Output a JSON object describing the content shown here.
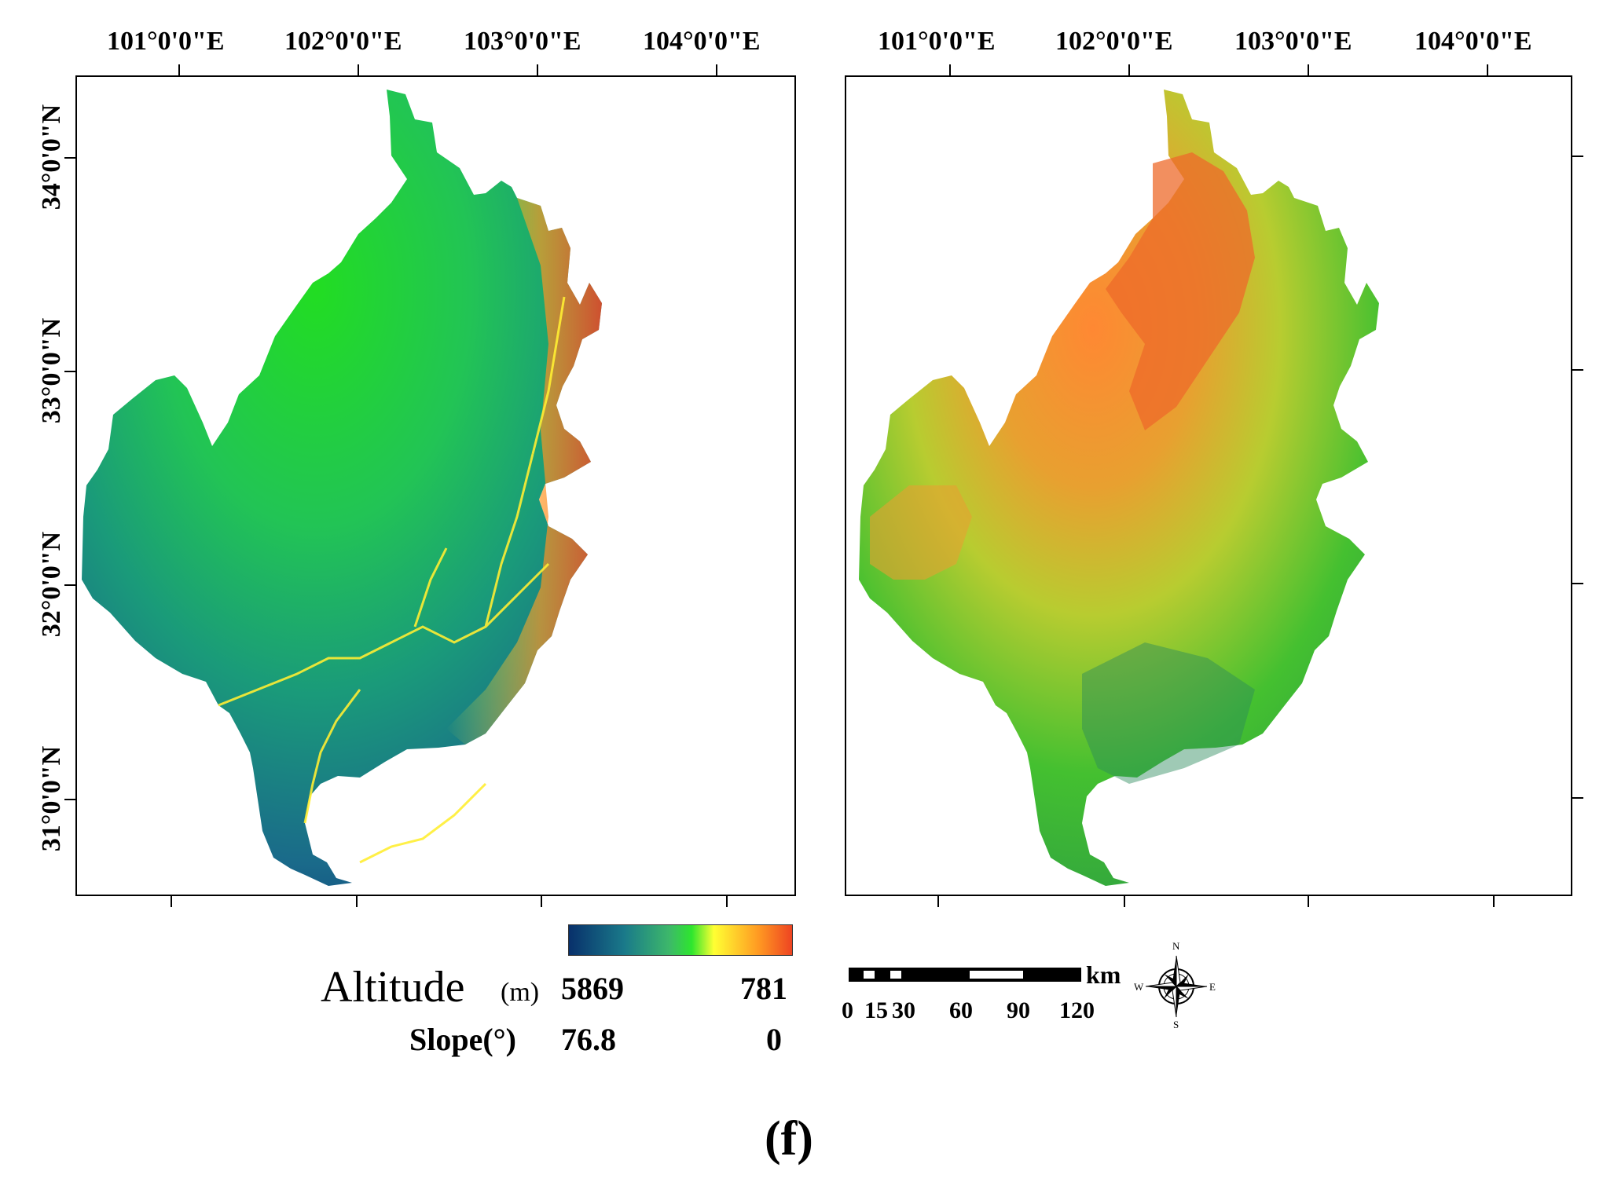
{
  "panel_label": "(f)",
  "longitude_labels": [
    "101°0'0\"E",
    "102°0'0\"E",
    "103°0'0\"E",
    "104°0'0\"E"
  ],
  "latitude_labels": [
    "34°0'0\"N",
    "33°0'0\"N",
    "32°0'0\"N",
    "31°0'0\"N"
  ],
  "left_map": {
    "layer": "Altitude (m)"
  },
  "right_map": {
    "layer": "Slope (°)"
  },
  "legend": {
    "altitude_label": "Altitude",
    "altitude_unit": "(m)",
    "altitude_min": "5869",
    "altitude_max": "781",
    "slope_label": "Slope(°)",
    "slope_min": "76.8",
    "slope_max": "0",
    "color_ramp": [
      "#08306b",
      "#1a7a8a",
      "#3db86a",
      "#2ee62e",
      "#ffff33",
      "#ff9922",
      "#ee4422"
    ]
  },
  "scale_bar": {
    "unit": "km",
    "ticks": [
      "0",
      "15",
      "30",
      "60",
      "90",
      "120"
    ]
  },
  "compass": {
    "n": "N",
    "s": "S",
    "e": "E",
    "w": "W"
  }
}
